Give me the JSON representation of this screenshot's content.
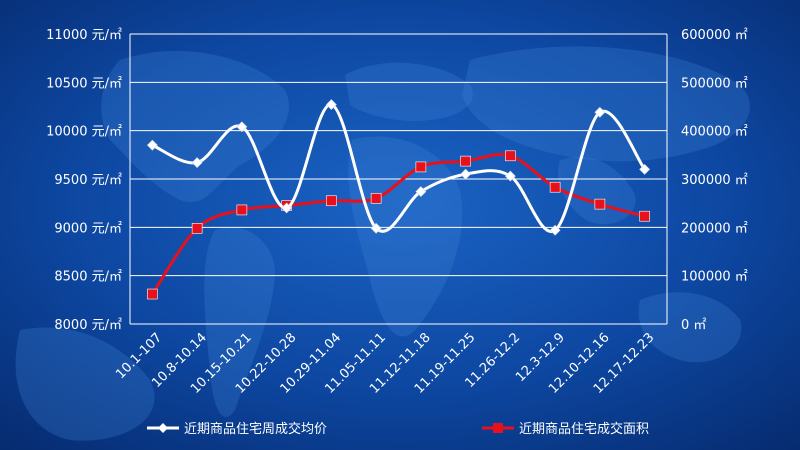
{
  "chart_data": {
    "type": "line",
    "title": "",
    "categories": [
      "10.1-107",
      "10.8-10.14",
      "10.15-10.21",
      "10.22-10.28",
      "10.29-11.04",
      "11.05-11.11",
      "11.12-11.18",
      "11.19-11.25",
      "11.26-12.2",
      "12.3-12.9",
      "12.10-12.16",
      "12.17-12.23"
    ],
    "y_left": {
      "ticks": [
        "8000 元/㎡",
        "8500 元/㎡",
        "9000 元/㎡",
        "9500 元/㎡",
        "10000 元/㎡",
        "10500 元/㎡",
        "11000 元/㎡"
      ],
      "ylim": [
        8000,
        11000
      ]
    },
    "y_right": {
      "ticks": [
        "0 ㎡",
        "100000 ㎡",
        "200000 ㎡",
        "300000 ㎡",
        "400000 ㎡",
        "500000 ㎡",
        "600000 ㎡"
      ],
      "ylim": [
        0,
        600000
      ]
    },
    "series": [
      {
        "name": "近期商品住宅周成交均价",
        "axis": "left",
        "style": "smooth-line-diamond",
        "color": "#ffffff",
        "values": [
          9850,
          9670,
          10040,
          9200,
          10270,
          8990,
          9370,
          9550,
          9530,
          8970,
          10190,
          9600
        ]
      },
      {
        "name": "近期商品住宅成交面积",
        "axis": "right",
        "style": "smooth-line-square",
        "color": "#e8101a",
        "values": [
          62000,
          198000,
          236000,
          245000,
          255000,
          260000,
          325000,
          337000,
          348000,
          283000,
          248000,
          223000
        ]
      }
    ],
    "grid": true,
    "legend": "bottom"
  }
}
